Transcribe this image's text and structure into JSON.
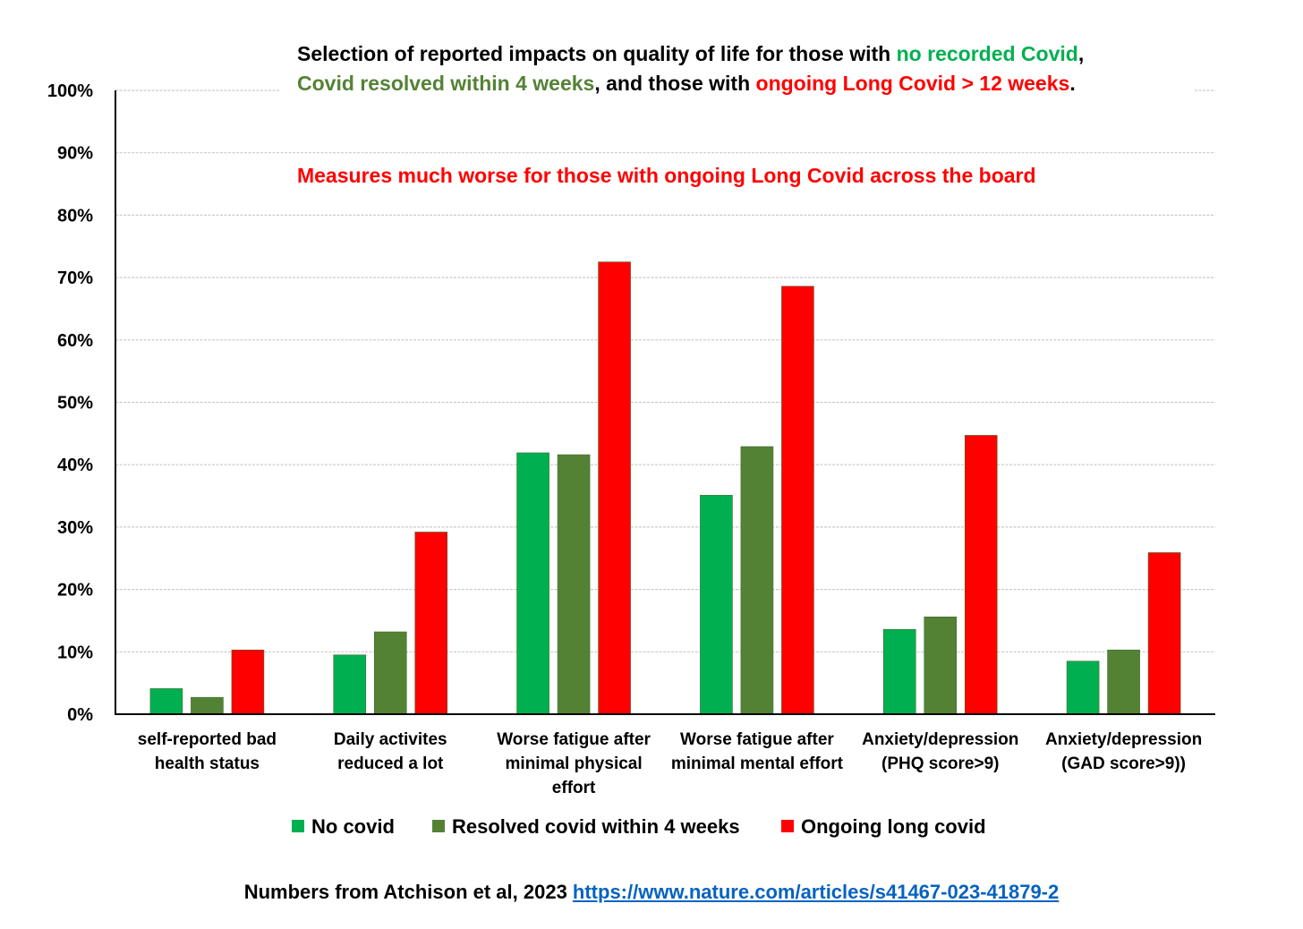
{
  "colors": {
    "no_covid": "#00b050",
    "resolved": "#548235",
    "ongoing": "#ff0000",
    "link": "#0563c1"
  },
  "title": {
    "part1": "Selection of reported impacts on quality of life for those with ",
    "part2": "no recorded Covid",
    "part3": ",",
    "part4": "Covid resolved within 4 weeks",
    "part5": ", and those with ",
    "part6": "ongoing Long Covid > 12 weeks",
    "part7": "."
  },
  "subtitle": "Measures much worse for those with ongoing Long Covid across the board",
  "source": {
    "text": "Numbers from Atchison et al, 2023 ",
    "link": "https://www.nature.com/articles/s41467-023-41879-2"
  },
  "chart_data": {
    "type": "bar",
    "categories": [
      [
        "self-reported bad",
        "health status"
      ],
      [
        "Daily activites",
        "reduced a lot"
      ],
      [
        "Worse fatigue after",
        "minimal physical",
        "effort"
      ],
      [
        "Worse fatigue after",
        "minimal mental effort"
      ],
      [
        "Anxiety/depression",
        "(PHQ score>9)"
      ],
      [
        "Anxiety/depression",
        "(GAD score>9))"
      ]
    ],
    "series": [
      {
        "name": "No covid",
        "color": "#00b050",
        "values": [
          4.1,
          9.5,
          41.9,
          35.1,
          13.6,
          8.5
        ]
      },
      {
        "name": "Resolved covid within 4 weeks",
        "color": "#548235",
        "values": [
          2.7,
          13.2,
          41.6,
          42.9,
          15.6,
          10.3
        ]
      },
      {
        "name": "Ongoing long covid",
        "color": "#ff0000",
        "values": [
          10.3,
          29.2,
          72.5,
          68.6,
          44.7,
          25.9
        ]
      }
    ],
    "yticks": [
      "0%",
      "10%",
      "20%",
      "30%",
      "40%",
      "50%",
      "60%",
      "70%",
      "80%",
      "90%",
      "100%"
    ],
    "ylim": [
      0,
      100
    ],
    "grid": true,
    "legend_position": "bottom"
  }
}
